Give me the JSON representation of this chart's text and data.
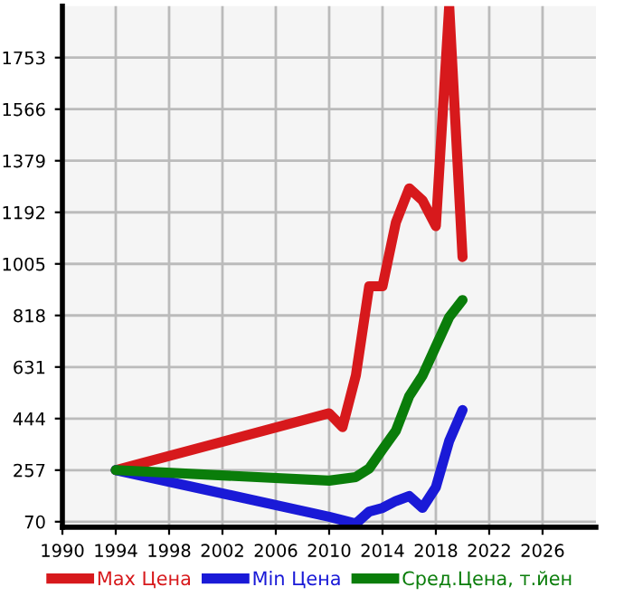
{
  "chart_data": {
    "type": "line",
    "x": [
      1994,
      2010,
      2011,
      2012,
      2013,
      2014,
      2015,
      2016,
      2017,
      2018,
      2019,
      2020
    ],
    "series": [
      {
        "name": "Max Цена",
        "color": "#d7191c",
        "values": [
          257,
          463,
          413,
          600,
          924,
          924,
          1155,
          1279,
          1235,
          1142,
          1940,
          1030
        ]
      },
      {
        "name": "Min Цена",
        "color": "#1a1ad7",
        "values": [
          257,
          88,
          null,
          63,
          107,
          120,
          145,
          163,
          120,
          195,
          363,
          475
        ]
      },
      {
        "name": "Сред.Цена, т.йен",
        "color": "#0a7d0a",
        "values": [
          257,
          219,
          null,
          232,
          263,
          332,
          400,
          525,
          600,
          706,
          812,
          874
        ]
      }
    ],
    "xlim": [
      1990,
      2030
    ],
    "xticks": [
      1990,
      1994,
      1998,
      2002,
      2006,
      2010,
      2014,
      2018,
      2022,
      2026
    ],
    "ylim": [
      50,
      1940
    ],
    "yticks": [
      70,
      257,
      444,
      631,
      818,
      1005,
      1192,
      1379,
      1566,
      1753
    ],
    "grid": true,
    "legend": "bottom",
    "marker": "none",
    "line_style": "solid"
  }
}
